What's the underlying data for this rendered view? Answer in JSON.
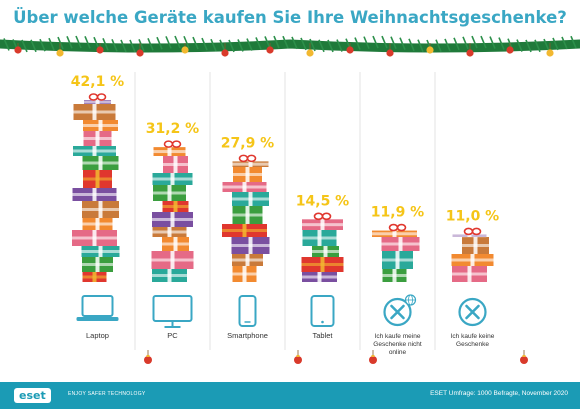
{
  "title": "Über welche Geräte kaufen Sie Ihre Weihnachtsgeschenke?",
  "footer": {
    "logo": "eset",
    "tagline": "ENJOY SAFER TECHNOLOGY",
    "source": "ESET Umfrage: 1000 Befragte, November 2020"
  },
  "colors": {
    "title": "#3aa7c4",
    "value": "#f5c518",
    "footer": "#1b9bb5",
    "garland": "#1f7a3a",
    "ornament": "#d93a2b",
    "icon": "#3aa7c4",
    "gift_red": "#e0372e",
    "gift_green": "#3b9e3f",
    "gift_teal": "#2aa99a",
    "gift_pink": "#e56a86",
    "gift_orange": "#f28a30",
    "gift_peach": "#f4a07a",
    "gift_brown": "#c97a3a",
    "gift_purple": "#7a4fa0"
  },
  "chart_data": {
    "type": "bar",
    "title": "Über welche Geräte kaufen Sie Ihre Weihnachtsgeschenke?",
    "categories": [
      "Laptop",
      "PC",
      "Smartphone",
      "Tablet",
      "Ich kaufe meine Geschenke nicht online",
      "Ich kaufe keine Geschenke"
    ],
    "category_lines": [
      [
        "Laptop"
      ],
      [
        "PC"
      ],
      [
        "Smartphone"
      ],
      [
        "Tablet"
      ],
      [
        "Ich kaufe meine",
        "Geschenke nicht",
        "online"
      ],
      [
        "Ich kaufe keine",
        "Geschenke"
      ]
    ],
    "values": [
      42.1,
      31.2,
      27.9,
      14.5,
      11.9,
      11.0
    ],
    "value_labels": [
      "42,1 %",
      "31,2 %",
      "27,9 %",
      "14,5 %",
      "11,9 %",
      "11,0 %"
    ],
    "unit": "%",
    "icons": [
      "laptop-icon",
      "monitor-icon",
      "smartphone-icon",
      "tablet-icon",
      "no-online-icon",
      "no-gifts-icon"
    ],
    "mark": "stacked gift boxes"
  }
}
